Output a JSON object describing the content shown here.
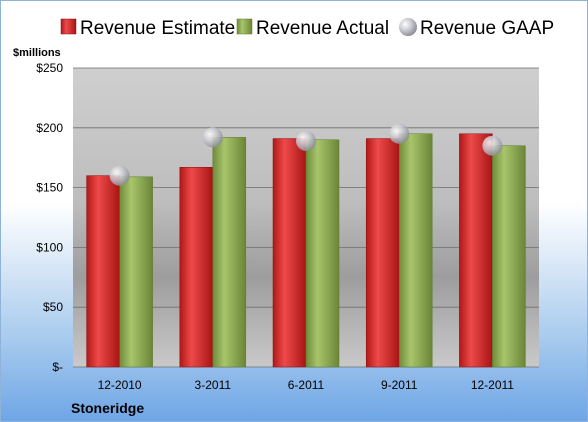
{
  "company": "Stoneridge",
  "unit_label": "$millions",
  "colors": {
    "estimate": "#d42a2a",
    "actual": "#93b35a",
    "gaap": "#c8c8d0"
  },
  "chart_data": {
    "type": "bar",
    "categories": [
      "12-2010",
      "3-2011",
      "6-2011",
      "9-2011",
      "12-2011"
    ],
    "series": [
      {
        "name": "Revenue Estimate",
        "values": [
          160,
          167,
          191,
          191,
          195
        ]
      },
      {
        "name": "Revenue Actual",
        "values": [
          159,
          192,
          190,
          195,
          185
        ]
      },
      {
        "name": "Revenue GAAP",
        "values": [
          160,
          192,
          189,
          195,
          185
        ]
      }
    ],
    "title": "",
    "xlabel": "",
    "ylabel": "$millions",
    "ylim": [
      0,
      250
    ],
    "yticks": [
      0,
      50,
      100,
      150,
      200,
      250
    ],
    "ytick_labels": [
      "$-",
      "$50",
      "$100",
      "$150",
      "$200",
      "$250"
    ],
    "grid": true,
    "legend_position": "top"
  }
}
